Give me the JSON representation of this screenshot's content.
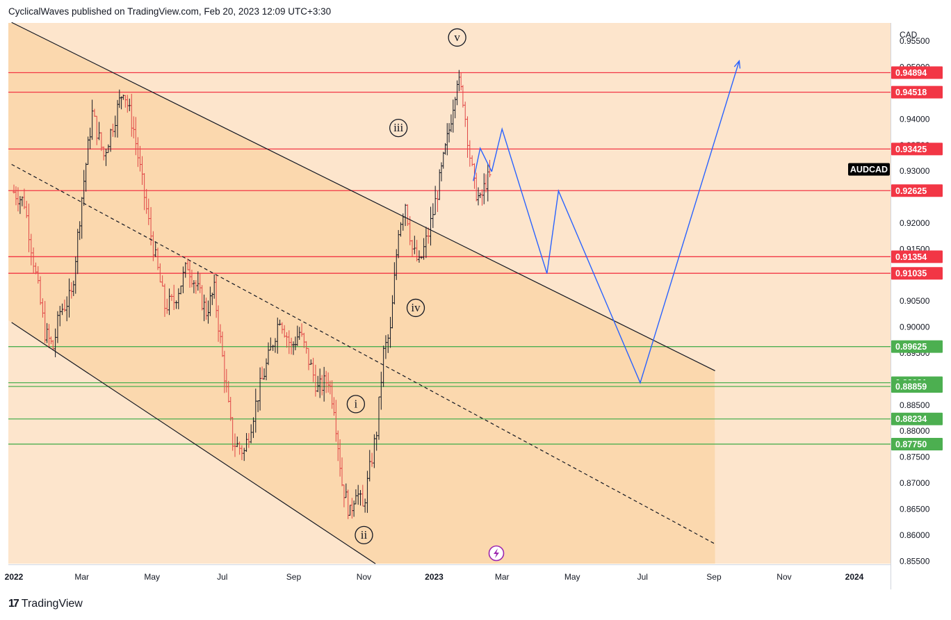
{
  "header": {
    "text": "CyclicalWaves published on TradingView.com, Feb 20, 2023 12:09 UTC+3:30"
  },
  "footer": {
    "brand": "TradingView",
    "mark": "17"
  },
  "colors": {
    "background": "#fde5cc",
    "channel_fill": "#fbd8ae",
    "resistance": "#f23645",
    "support": "#4caf50",
    "projection": "#2962ff",
    "candle": "#131722",
    "candle_down": "#e04545",
    "symbol_tag": "#000000"
  },
  "chart_data": {
    "type": "ohlc",
    "symbol": "AUDCAD",
    "currency": "CAD",
    "x_labels": [
      "2022",
      "Mar",
      "May",
      "Jul",
      "Sep",
      "Nov",
      "2023",
      "Mar",
      "May",
      "Jul",
      "Sep",
      "Nov",
      "2024"
    ],
    "y_ticks": [
      "0.95500",
      "0.95000",
      "0.94000",
      "0.93500",
      "0.93000",
      "0.92000",
      "0.91500",
      "0.90500",
      "0.90000",
      "0.89500",
      "0.88500",
      "0.88000",
      "0.87500",
      "0.87000",
      "0.86500",
      "0.86000",
      "0.85500"
    ],
    "ylim": [
      0.8545,
      0.9585
    ],
    "resistance_levels": [
      "0.94894",
      "0.94518",
      "0.93425",
      "0.92625",
      "0.91354",
      "0.91035"
    ],
    "support_levels": [
      "0.89625",
      "0.88931",
      "0.88859",
      "0.88234",
      "0.87750"
    ],
    "wave_labels": [
      {
        "label": "v",
        "date": "2023-01-21",
        "price": 0.9557
      },
      {
        "label": "iii",
        "date": "2022-12-01",
        "price": 0.9383
      },
      {
        "label": "iv",
        "date": "2022-12-16",
        "price": 0.9037
      },
      {
        "label": "i",
        "date": "2022-10-25",
        "price": 0.8852
      },
      {
        "label": "ii",
        "date": "2022-11-01",
        "price": 0.86
      }
    ],
    "projection_path": [
      {
        "date": "2023-02-20",
        "price": 0.9299
      },
      {
        "date": "2023-03-01",
        "price": 0.9381
      },
      {
        "date": "2023-04-09",
        "price": 0.9103
      },
      {
        "date": "2023-04-19",
        "price": 0.9262
      },
      {
        "date": "2023-06-29",
        "price": 0.8893
      },
      {
        "date": "2023-09-23",
        "price": 0.9512
      }
    ],
    "projection_hook": [
      {
        "date": "2023-02-10",
        "price": 0.9344
      },
      {
        "date": "2023-02-04",
        "price": 0.9281
      }
    ],
    "channel_upper": [
      {
        "date": "2021-12-30",
        "price": 0.9586
      },
      {
        "date": "2023-09-02",
        "price": 0.8916
      }
    ],
    "channel_lower": [
      {
        "date": "2021-12-30",
        "price": 0.9009
      },
      {
        "date": "2022-11-11",
        "price": 0.8545
      }
    ],
    "channel_mid": [
      {
        "date": "2021-12-30",
        "price": 0.9313
      },
      {
        "date": "2023-09-02",
        "price": 0.8583
      }
    ],
    "ohlc_anchors": [
      {
        "date": "2022-01-01",
        "price": 0.926
      },
      {
        "date": "2022-01-10",
        "price": 0.924
      },
      {
        "date": "2022-01-20",
        "price": 0.91
      },
      {
        "date": "2022-01-28",
        "price": 0.899
      },
      {
        "date": "2022-02-04",
        "price": 0.896
      },
      {
        "date": "2022-02-10",
        "price": 0.903
      },
      {
        "date": "2022-02-20",
        "price": 0.906
      },
      {
        "date": "2022-03-01",
        "price": 0.925
      },
      {
        "date": "2022-03-10",
        "price": 0.941
      },
      {
        "date": "2022-03-20",
        "price": 0.933
      },
      {
        "date": "2022-04-01",
        "price": 0.942
      },
      {
        "date": "2022-04-06",
        "price": 0.946
      },
      {
        "date": "2022-04-15",
        "price": 0.938
      },
      {
        "date": "2022-04-28",
        "price": 0.92
      },
      {
        "date": "2022-05-12",
        "price": 0.904
      },
      {
        "date": "2022-05-20",
        "price": 0.905
      },
      {
        "date": "2022-06-01",
        "price": 0.912
      },
      {
        "date": "2022-06-17",
        "price": 0.903
      },
      {
        "date": "2022-06-24",
        "price": 0.907
      },
      {
        "date": "2022-07-10",
        "price": 0.878
      },
      {
        "date": "2022-07-20",
        "price": 0.876
      },
      {
        "date": "2022-08-01",
        "price": 0.887
      },
      {
        "date": "2022-08-10",
        "price": 0.894
      },
      {
        "date": "2022-08-20",
        "price": 0.902
      },
      {
        "date": "2022-08-30",
        "price": 0.896
      },
      {
        "date": "2022-09-06",
        "price": 0.899
      },
      {
        "date": "2022-09-12",
        "price": 0.895
      },
      {
        "date": "2022-09-22",
        "price": 0.888
      },
      {
        "date": "2022-10-01",
        "price": 0.89
      },
      {
        "date": "2022-10-06",
        "price": 0.885
      },
      {
        "date": "2022-10-13",
        "price": 0.87
      },
      {
        "date": "2022-10-20",
        "price": 0.864
      },
      {
        "date": "2022-10-25",
        "price": 0.869
      },
      {
        "date": "2022-10-31",
        "price": 0.865
      },
      {
        "date": "2022-11-04",
        "price": 0.87
      },
      {
        "date": "2022-11-12",
        "price": 0.88
      },
      {
        "date": "2022-11-18",
        "price": 0.895
      },
      {
        "date": "2022-11-24",
        "price": 0.899
      },
      {
        "date": "2022-12-01",
        "price": 0.919
      },
      {
        "date": "2022-12-07",
        "price": 0.924
      },
      {
        "date": "2022-12-13",
        "price": 0.915
      },
      {
        "date": "2022-12-19",
        "price": 0.912
      },
      {
        "date": "2022-12-27",
        "price": 0.918
      },
      {
        "date": "2023-01-04",
        "price": 0.926
      },
      {
        "date": "2023-01-09",
        "price": 0.932
      },
      {
        "date": "2023-01-14",
        "price": 0.938
      },
      {
        "date": "2023-01-21",
        "price": 0.948
      },
      {
        "date": "2023-01-26",
        "price": 0.944
      },
      {
        "date": "2023-02-01",
        "price": 0.933
      },
      {
        "date": "2023-02-05",
        "price": 0.927
      },
      {
        "date": "2023-02-10",
        "price": 0.924
      },
      {
        "date": "2023-02-15",
        "price": 0.928
      },
      {
        "date": "2023-02-20",
        "price": 0.929
      }
    ]
  }
}
